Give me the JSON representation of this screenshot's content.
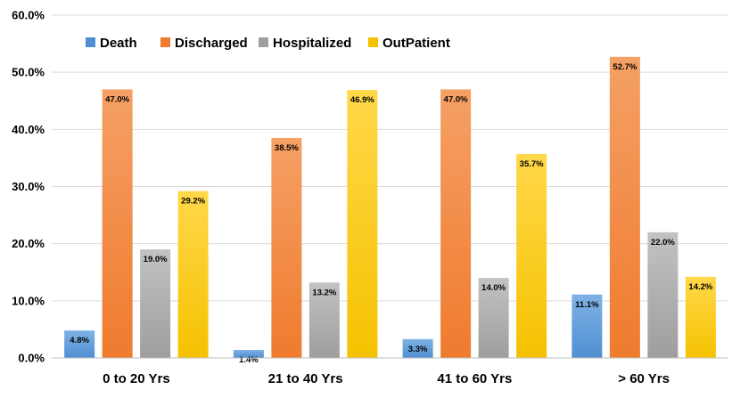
{
  "chart_data": {
    "type": "bar",
    "title": "",
    "xlabel": "",
    "ylabel": "",
    "categories": [
      "0 to 20 Yrs",
      "21 to 40 Yrs",
      "41 to 60 Yrs",
      "> 60 Yrs"
    ],
    "series": [
      {
        "name": "Death",
        "values": [
          4.8,
          1.4,
          3.3,
          11.1
        ],
        "labels": [
          "4.8%",
          "1.4%",
          "3.3%",
          "11.1%"
        ],
        "color": "#4f8fd1",
        "color_light": "#7fb2e6"
      },
      {
        "name": "Discharged",
        "values": [
          47.0,
          38.5,
          47.0,
          52.7
        ],
        "labels": [
          "47.0%",
          "38.5%",
          "47.0%",
          "52.7%"
        ],
        "color": "#ef7b2e",
        "color_light": "#f5a065"
      },
      {
        "name": "Hospitalized",
        "values": [
          19.0,
          13.2,
          14.0,
          22.0
        ],
        "labels": [
          "19.0%",
          "13.2%",
          "14.0%",
          "22.0%"
        ],
        "color": "#9e9e9e",
        "color_light": "#c2c2c2"
      },
      {
        "name": "OutPatient",
        "values": [
          29.2,
          46.9,
          35.7,
          14.2
        ],
        "labels": [
          "29.2%",
          "46.9%",
          "35.7%",
          "14.2%"
        ],
        "color": "#f5c200",
        "color_light": "#ffd84a"
      }
    ],
    "ylim": [
      0,
      60
    ],
    "yticks": [
      0,
      10,
      20,
      30,
      40,
      50,
      60
    ],
    "ytick_labels": [
      "0.0%",
      "10.0%",
      "20.0%",
      "30.0%",
      "40.0%",
      "50.0%",
      "60.0%"
    ],
    "grid": true,
    "legend_position": "top-left"
  }
}
